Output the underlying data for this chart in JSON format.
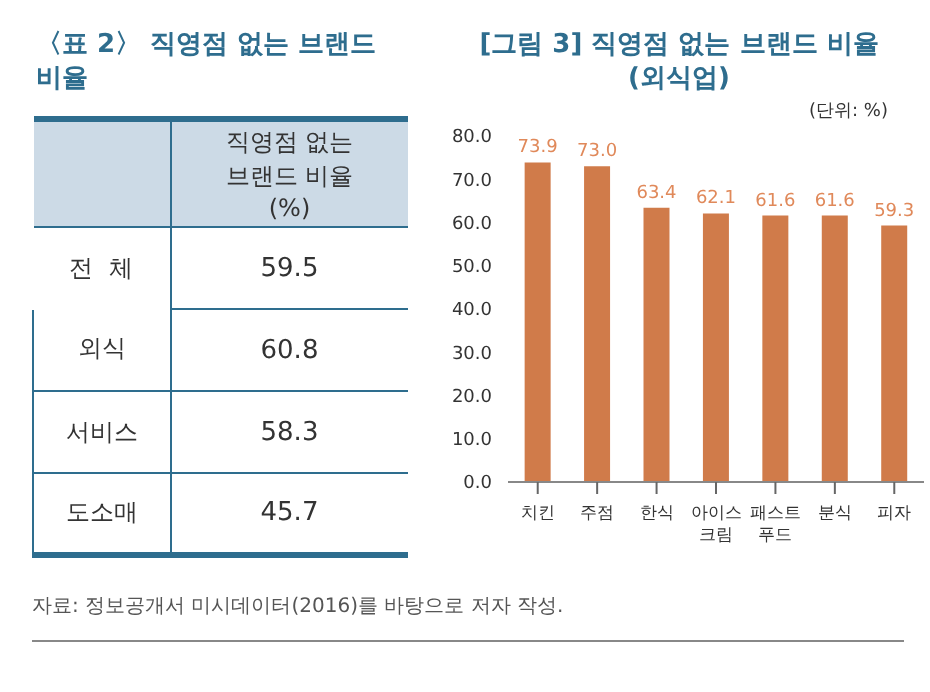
{
  "chart_data": [
    {
      "type": "other",
      "title": "〈표 2〉 직영점 없는 브랜드 비율",
      "ylabel": "직영점 없는 브랜드 비율(%)",
      "categories": [
        "전  체",
        "외식",
        "서비스",
        "도소매"
      ],
      "values": [
        59.5,
        60.8,
        58.3,
        45.7
      ],
      "data_labels": true
    },
    {
      "type": "bar",
      "title": "[그림 3] 직영점 없는 브랜드 비율 (외식업)",
      "subtitle": "(단위: %)",
      "categories": [
        "치킨",
        "주점",
        "한식",
        "아이스 크림",
        "패스트 푸드",
        "분식",
        "피자"
      ],
      "values": [
        73.9,
        73.0,
        63.4,
        62.1,
        61.6,
        61.6,
        59.3
      ],
      "color": "#d07b4a",
      "ylim": [
        0,
        80
      ],
      "yticks": [
        {
          "value": 0,
          "label": "0.0"
        },
        {
          "value": 10,
          "label": "10.0"
        },
        {
          "value": 20,
          "label": "20.0"
        },
        {
          "value": 30,
          "label": "30.0"
        },
        {
          "value": 40,
          "label": "40.0"
        },
        {
          "value": 50,
          "label": "50.0"
        },
        {
          "value": 60,
          "label": "60.0"
        },
        {
          "value": 70,
          "label": "70.0"
        },
        {
          "value": 80,
          "label": "80.0"
        }
      ],
      "value_labels": [
        "73.9",
        "73.0",
        "63.4",
        "62.1",
        "61.6",
        "61.6",
        "59.3"
      ],
      "grid": false,
      "annotations": [
        "자료: 정보공개서 미시데이터(2016)를 바탕으로 저자 작성."
      ]
    }
  ]
}
